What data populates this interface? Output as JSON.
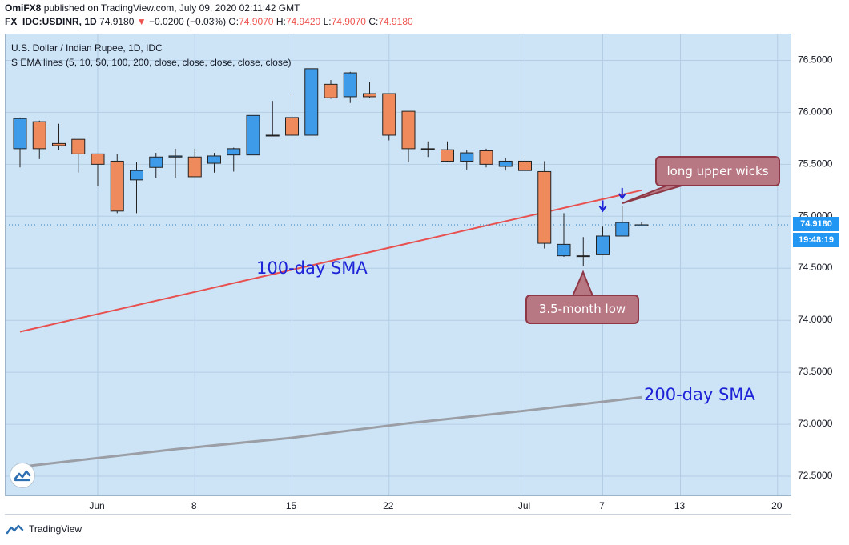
{
  "header": {
    "user": "OmiFX8",
    "published": " published on TradingView.com, July 09, 2020 02:11:42 GMT",
    "symbol": "FX_IDC:USDINR, 1D",
    "last": "74.9180",
    "change_arrow": "▼",
    "change": "−0.0200 (−0.03%)",
    "o_label": "O:",
    "o_value": "74.9070",
    "h_label": "H:",
    "h_value": "74.9420",
    "l_label": "L:",
    "l_value": "74.9070",
    "c_label": "C:",
    "c_value": "74.9180"
  },
  "chart_title": "U.S. Dollar / Indian Rupee, 1D, IDC",
  "indicator_title": "S EMA lines (5, 10, 50, 100, 200, close, close, close, close, close)",
  "price_tag": {
    "price": "74.9180",
    "countdown": "19:48:19"
  },
  "annotations": {
    "sma100": "100-day SMA",
    "sma200": "200-day SMA",
    "callout_wicks": "long upper wicks",
    "callout_low": "3.5-month low"
  },
  "footer": {
    "brand": "TradingView",
    "logo_icon": "tradingview-logo-icon"
  },
  "colors": {
    "up": "#3d9be9",
    "down": "#ef8a5c",
    "sma100": "#e8504f",
    "sma200": "#9b9ea5",
    "background": "#cde4f7",
    "annotation_text": "#1d23d6"
  },
  "chart_data": {
    "type": "candlestick",
    "title": "U.S. Dollar / Indian Rupee, 1D, IDC",
    "ylim": [
      72.3,
      76.75
    ],
    "y_ticks": [
      72.5,
      73.0,
      73.5,
      74.0,
      74.5,
      75.0,
      75.5,
      76.0,
      76.5
    ],
    "y_tick_labels": [
      "72.5000",
      "73.0000",
      "73.5000",
      "74.0000",
      "74.5000",
      "75.0000",
      "75.5000",
      "76.0000",
      "76.5000"
    ],
    "x_labels": [
      {
        "label": "Jun",
        "index": 4
      },
      {
        "label": "8",
        "index": 9
      },
      {
        "label": "15",
        "index": 14
      },
      {
        "label": "22",
        "index": 19
      },
      {
        "label": "Jul",
        "index": 26
      },
      {
        "label": "7",
        "index": 30
      },
      {
        "label": "13",
        "index": 34
      },
      {
        "label": "20",
        "index": 39
      }
    ],
    "grid": true,
    "last_price": 74.918,
    "candles": [
      {
        "i": 0,
        "o": 75.65,
        "h": 75.95,
        "l": 75.47,
        "c": 75.94
      },
      {
        "i": 1,
        "o": 75.91,
        "h": 75.92,
        "l": 75.55,
        "c": 75.65
      },
      {
        "i": 2,
        "o": 75.7,
        "h": 75.89,
        "l": 75.64,
        "c": 75.68
      },
      {
        "i": 3,
        "o": 75.74,
        "h": 75.74,
        "l": 75.42,
        "c": 75.6
      },
      {
        "i": 4,
        "o": 75.6,
        "h": 75.6,
        "l": 75.29,
        "c": 75.5
      },
      {
        "i": 5,
        "o": 75.53,
        "h": 75.6,
        "l": 75.03,
        "c": 75.05
      },
      {
        "i": 6,
        "o": 75.35,
        "h": 75.52,
        "l": 75.03,
        "c": 75.44
      },
      {
        "i": 7,
        "o": 75.47,
        "h": 75.61,
        "l": 75.37,
        "c": 75.57
      },
      {
        "i": 8,
        "o": 75.57,
        "h": 75.65,
        "l": 75.37,
        "c": 75.58
      },
      {
        "i": 9,
        "o": 75.57,
        "h": 75.65,
        "l": 75.38,
        "c": 75.38
      },
      {
        "i": 10,
        "o": 75.51,
        "h": 75.61,
        "l": 75.42,
        "c": 75.58
      },
      {
        "i": 11,
        "o": 75.59,
        "h": 75.66,
        "l": 75.43,
        "c": 75.65
      },
      {
        "i": 12,
        "o": 75.59,
        "h": 75.97,
        "l": 75.59,
        "c": 75.97
      },
      {
        "i": 13,
        "o": 75.78,
        "h": 76.11,
        "l": 75.78,
        "c": 75.78
      },
      {
        "i": 14,
        "o": 75.95,
        "h": 76.18,
        "l": 75.78,
        "c": 75.78
      },
      {
        "i": 15,
        "o": 75.78,
        "h": 76.42,
        "l": 75.78,
        "c": 76.42
      },
      {
        "i": 16,
        "o": 76.27,
        "h": 76.31,
        "l": 76.13,
        "c": 76.14
      },
      {
        "i": 17,
        "o": 76.15,
        "h": 76.39,
        "l": 76.09,
        "c": 76.38
      },
      {
        "i": 18,
        "o": 76.18,
        "h": 76.29,
        "l": 76.14,
        "c": 76.15
      },
      {
        "i": 19,
        "o": 76.18,
        "h": 76.18,
        "l": 75.73,
        "c": 75.78
      },
      {
        "i": 20,
        "o": 76.01,
        "h": 76.01,
        "l": 75.52,
        "c": 75.65
      },
      {
        "i": 21,
        "o": 75.65,
        "h": 75.72,
        "l": 75.57,
        "c": 75.65
      },
      {
        "i": 22,
        "o": 75.64,
        "h": 75.72,
        "l": 75.52,
        "c": 75.53
      },
      {
        "i": 23,
        "o": 75.53,
        "h": 75.64,
        "l": 75.45,
        "c": 75.61
      },
      {
        "i": 24,
        "o": 75.63,
        "h": 75.65,
        "l": 75.47,
        "c": 75.5
      },
      {
        "i": 25,
        "o": 75.48,
        "h": 75.56,
        "l": 75.44,
        "c": 75.53
      },
      {
        "i": 26,
        "o": 75.53,
        "h": 75.59,
        "l": 75.44,
        "c": 75.44
      },
      {
        "i": 27,
        "o": 75.43,
        "h": 75.53,
        "l": 74.69,
        "c": 74.74
      },
      {
        "i": 28,
        "o": 74.62,
        "h": 75.03,
        "l": 74.61,
        "c": 74.73
      },
      {
        "i": 29,
        "o": 74.62,
        "h": 74.8,
        "l": 74.52,
        "c": 74.62
      },
      {
        "i": 30,
        "o": 74.63,
        "h": 74.9,
        "l": 74.63,
        "c": 74.81
      },
      {
        "i": 31,
        "o": 74.81,
        "h": 75.1,
        "l": 74.81,
        "c": 74.94
      },
      {
        "i": 32,
        "o": 74.907,
        "h": 74.942,
        "l": 74.907,
        "c": 74.918
      }
    ],
    "series": [
      {
        "name": "100-day SMA",
        "points": [
          [
            0,
            73.89
          ],
          [
            32,
            75.25
          ]
        ]
      },
      {
        "name": "200-day SMA",
        "points": [
          [
            0,
            72.59
          ],
          [
            8,
            72.76
          ],
          [
            14,
            72.87
          ],
          [
            20,
            73.01
          ],
          [
            26,
            73.13
          ],
          [
            32,
            73.26
          ]
        ]
      }
    ]
  }
}
